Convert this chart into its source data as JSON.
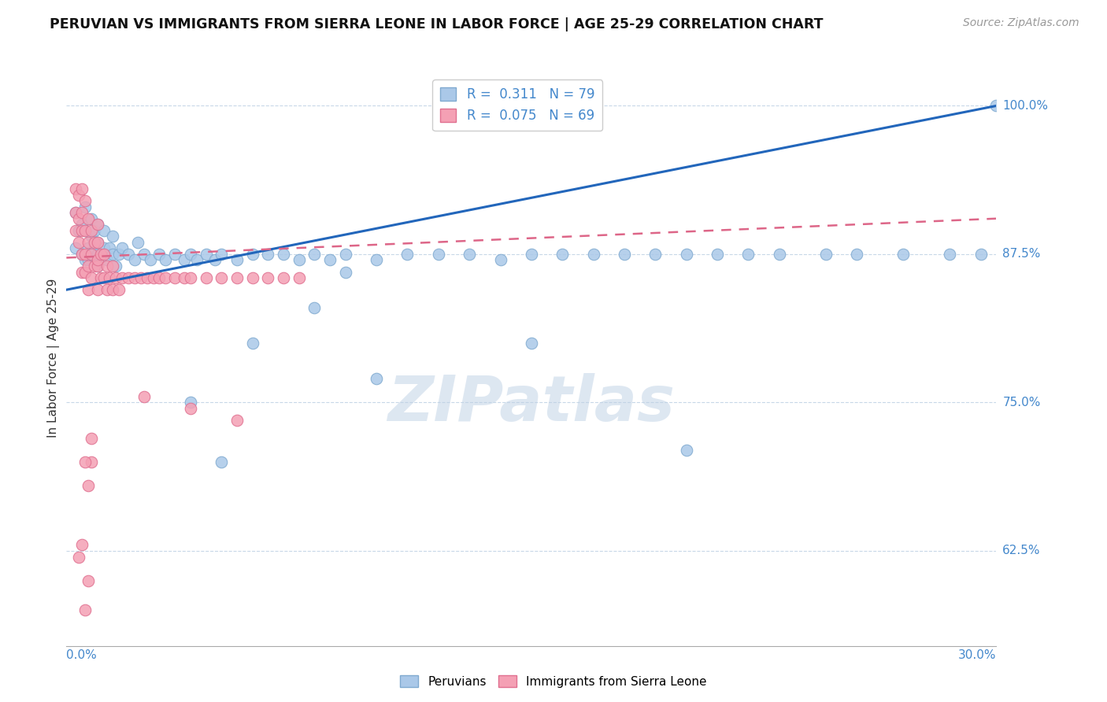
{
  "title": "PERUVIAN VS IMMIGRANTS FROM SIERRA LEONE IN LABOR FORCE | AGE 25-29 CORRELATION CHART",
  "source": "Source: ZipAtlas.com",
  "xlabel_bottom_left": "0.0%",
  "xlabel_bottom_right": "30.0%",
  "ylabel": "In Labor Force | Age 25-29",
  "xlim": [
    0.0,
    0.3
  ],
  "ylim": [
    0.545,
    1.03
  ],
  "blue_R": 0.311,
  "blue_N": 79,
  "pink_R": 0.075,
  "pink_N": 69,
  "blue_color": "#aac8e8",
  "pink_color": "#f4a0b4",
  "blue_edge": "#80aad0",
  "pink_edge": "#e07090",
  "trend_blue": "#2266bb",
  "trend_pink": "#dd6688",
  "grid_color": "#c8d8e8",
  "label_color": "#4488cc",
  "ytick_vals": [
    0.625,
    0.75,
    0.875,
    1.0
  ],
  "ytick_labels": [
    "62.5%",
    "75.0%",
    "87.5%",
    "100.0%"
  ],
  "blue_scatter_x": [
    0.003,
    0.003,
    0.004,
    0.005,
    0.005,
    0.006,
    0.006,
    0.006,
    0.007,
    0.007,
    0.008,
    0.008,
    0.008,
    0.009,
    0.009,
    0.01,
    0.01,
    0.01,
    0.01,
    0.01,
    0.012,
    0.012,
    0.013,
    0.014,
    0.015,
    0.015,
    0.016,
    0.017,
    0.018,
    0.02,
    0.022,
    0.023,
    0.025,
    0.027,
    0.03,
    0.032,
    0.035,
    0.038,
    0.04,
    0.042,
    0.045,
    0.048,
    0.05,
    0.055,
    0.06,
    0.065,
    0.07,
    0.075,
    0.08,
    0.085,
    0.09,
    0.1,
    0.11,
    0.12,
    0.13,
    0.14,
    0.15,
    0.16,
    0.17,
    0.18,
    0.19,
    0.2,
    0.21,
    0.22,
    0.23,
    0.245,
    0.255,
    0.27,
    0.285,
    0.295,
    0.3,
    0.1,
    0.15,
    0.2,
    0.04,
    0.05,
    0.06,
    0.08,
    0.09
  ],
  "blue_scatter_y": [
    0.88,
    0.91,
    0.895,
    0.9,
    0.875,
    0.87,
    0.895,
    0.915,
    0.88,
    0.87,
    0.89,
    0.875,
    0.905,
    0.88,
    0.895,
    0.87,
    0.885,
    0.9,
    0.875,
    0.865,
    0.88,
    0.895,
    0.87,
    0.88,
    0.875,
    0.89,
    0.865,
    0.875,
    0.88,
    0.875,
    0.87,
    0.885,
    0.875,
    0.87,
    0.875,
    0.87,
    0.875,
    0.87,
    0.875,
    0.87,
    0.875,
    0.87,
    0.875,
    0.87,
    0.875,
    0.875,
    0.875,
    0.87,
    0.875,
    0.87,
    0.875,
    0.87,
    0.875,
    0.875,
    0.875,
    0.87,
    0.875,
    0.875,
    0.875,
    0.875,
    0.875,
    0.875,
    0.875,
    0.875,
    0.875,
    0.875,
    0.875,
    0.875,
    0.875,
    0.875,
    1.0,
    0.77,
    0.8,
    0.71,
    0.75,
    0.7,
    0.8,
    0.83,
    0.86
  ],
  "pink_scatter_x": [
    0.003,
    0.003,
    0.003,
    0.004,
    0.004,
    0.004,
    0.005,
    0.005,
    0.005,
    0.005,
    0.005,
    0.006,
    0.006,
    0.006,
    0.006,
    0.007,
    0.007,
    0.007,
    0.007,
    0.008,
    0.008,
    0.008,
    0.009,
    0.009,
    0.01,
    0.01,
    0.01,
    0.01,
    0.01,
    0.011,
    0.011,
    0.012,
    0.012,
    0.013,
    0.013,
    0.014,
    0.015,
    0.015,
    0.016,
    0.017,
    0.018,
    0.02,
    0.022,
    0.024,
    0.026,
    0.028,
    0.03,
    0.032,
    0.035,
    0.038,
    0.04,
    0.045,
    0.05,
    0.055,
    0.06,
    0.065,
    0.07,
    0.075,
    0.025,
    0.04,
    0.055,
    0.008,
    0.008,
    0.007,
    0.006,
    0.005,
    0.004,
    0.007,
    0.006
  ],
  "pink_scatter_y": [
    0.93,
    0.91,
    0.895,
    0.925,
    0.905,
    0.885,
    0.93,
    0.91,
    0.895,
    0.875,
    0.86,
    0.92,
    0.895,
    0.875,
    0.86,
    0.905,
    0.885,
    0.865,
    0.845,
    0.895,
    0.875,
    0.855,
    0.885,
    0.865,
    0.9,
    0.885,
    0.865,
    0.845,
    0.87,
    0.875,
    0.855,
    0.875,
    0.855,
    0.865,
    0.845,
    0.855,
    0.865,
    0.845,
    0.855,
    0.845,
    0.855,
    0.855,
    0.855,
    0.855,
    0.855,
    0.855,
    0.855,
    0.855,
    0.855,
    0.855,
    0.855,
    0.855,
    0.855,
    0.855,
    0.855,
    0.855,
    0.855,
    0.855,
    0.755,
    0.745,
    0.735,
    0.72,
    0.7,
    0.68,
    0.7,
    0.63,
    0.62,
    0.6,
    0.575
  ],
  "watermark_text": "ZIPatlas",
  "legend_blue_label": "Peruvians",
  "legend_pink_label": "Immigrants from Sierra Leone"
}
